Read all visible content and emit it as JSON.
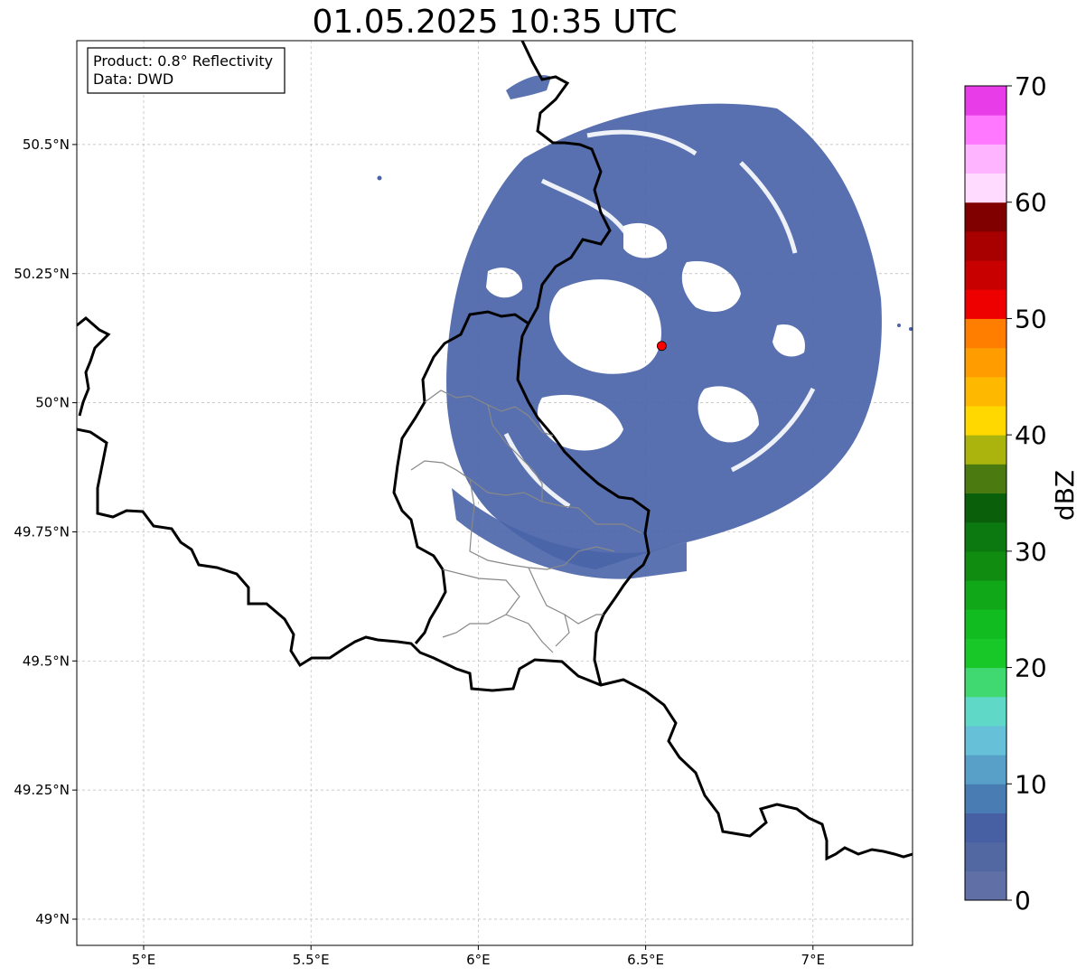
{
  "title": "01.05.2025 10:35 UTC",
  "info_box": {
    "product_line": "Product: 0.8° Reflectivity",
    "data_line": "Data: DWD"
  },
  "map": {
    "lon_range": [
      4.8,
      7.3
    ],
    "lat_range": [
      48.95,
      50.7
    ],
    "x_ticks": [
      {
        "value": 5.0,
        "label": "5°E"
      },
      {
        "value": 5.5,
        "label": "5.5°E"
      },
      {
        "value": 6.0,
        "label": "6°E"
      },
      {
        "value": 6.5,
        "label": "6.5°E"
      },
      {
        "value": 7.0,
        "label": "7°E"
      }
    ],
    "y_ticks": [
      {
        "value": 49.0,
        "label": "49°N"
      },
      {
        "value": 49.25,
        "label": "49.25°N"
      },
      {
        "value": 49.5,
        "label": "49.5°N"
      },
      {
        "value": 49.75,
        "label": "49.75°N"
      },
      {
        "value": 50.0,
        "label": "50°N"
      },
      {
        "value": 50.25,
        "label": "50.25°N"
      },
      {
        "value": 50.5,
        "label": "50.5°N"
      }
    ],
    "grid": "dashed",
    "radar_site": {
      "lon": 6.548,
      "lat": 50.11,
      "color": "#ff0000"
    },
    "echo_color": "#4a64a8",
    "echo_core_color": "#3f57a0"
  },
  "colorbar": {
    "label": "dBZ",
    "tick_labels": [
      "0",
      "10",
      "20",
      "30",
      "40",
      "50",
      "60",
      "70"
    ],
    "min": 0,
    "max": 70,
    "step": 2.5,
    "colors": [
      "#6070a6",
      "#5268a3",
      "#4660a3",
      "#4a7cb4",
      "#58a0c8",
      "#66c0d8",
      "#60d8c8",
      "#40d870",
      "#18c828",
      "#10bc20",
      "#10a818",
      "#108c10",
      "#0c7810",
      "#0a600a",
      "#4a7a10",
      "#aab40c",
      "#ffd800",
      "#ffb800",
      "#ff9c00",
      "#ff7e00",
      "#ee0000",
      "#c80000",
      "#a80000",
      "#800000",
      "#ffdcff",
      "#ffb4ff",
      "#ff78ff",
      "#e83ce8"
    ]
  }
}
